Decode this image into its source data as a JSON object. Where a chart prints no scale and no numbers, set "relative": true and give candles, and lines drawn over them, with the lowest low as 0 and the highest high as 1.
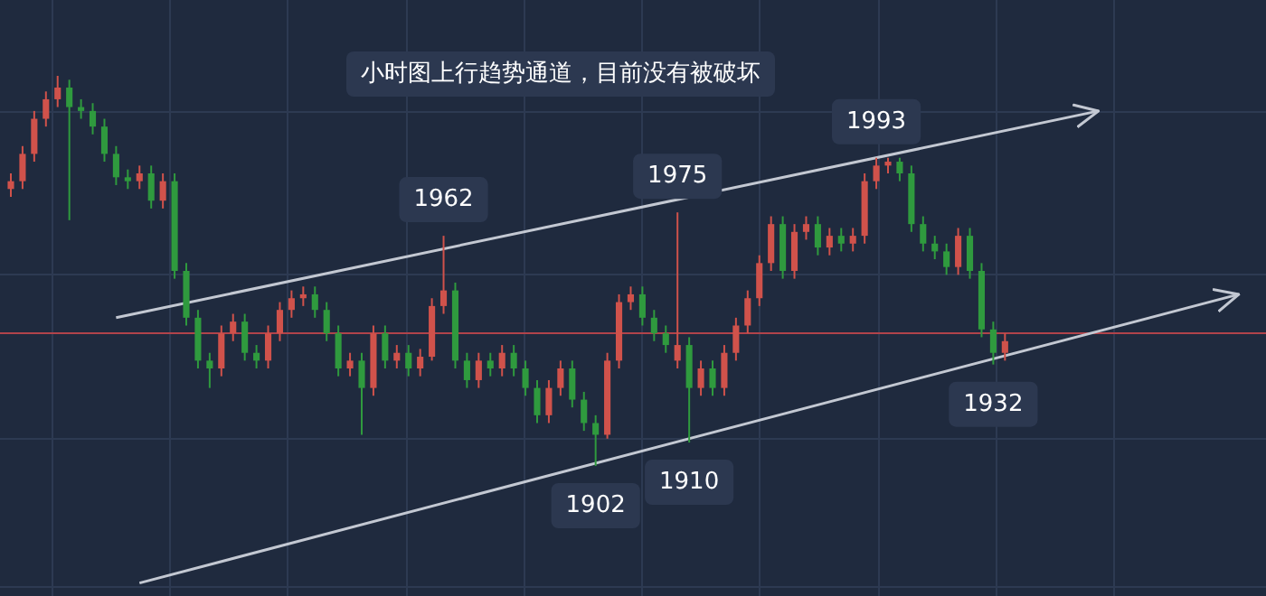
{
  "chart_data": {
    "type": "candlestick",
    "title": "小时图上行趋势通道，目前没有被破坏",
    "relative": true,
    "grid": true,
    "categories": [
      null,
      null,
      null,
      null,
      null,
      null,
      null,
      null,
      null,
      null,
      null,
      null,
      null,
      null,
      null,
      null,
      null,
      null,
      null,
      null,
      null,
      null,
      null,
      null,
      null,
      null,
      null,
      null,
      null,
      null,
      null,
      null,
      null,
      null,
      null,
      null,
      null,
      null,
      null,
      null,
      null,
      null,
      null,
      null,
      null,
      null,
      null,
      null,
      null,
      null,
      null,
      null,
      null,
      null,
      null,
      null,
      null,
      null,
      null,
      null,
      null,
      null,
      null,
      null,
      null,
      null,
      null,
      null,
      null,
      null,
      null,
      null,
      null,
      null,
      null,
      null,
      null,
      null,
      null,
      null,
      null,
      null,
      null,
      null,
      null,
      null,
      null,
      null,
      null,
      null,
      null,
      null,
      null,
      null,
      null,
      null,
      null,
      null,
      null,
      null,
      null,
      null,
      null,
      null,
      null,
      null
    ],
    "colors": [
      "#d0524b",
      "#d0524b",
      "#d0524b",
      "#d0524b",
      "#d0524b",
      "#2f9a3e",
      "#2f9a3e",
      "#2f9a3e",
      "#2f9a3e",
      "#2f9a3e",
      "#2f9a3e",
      "#d0524b",
      "#2f9a3e",
      "#d0524b",
      "#2f9a3e",
      "#2f9a3e",
      "#2f9a3e",
      "#2f9a3e",
      "#d0524b",
      "#d0524b",
      "#2f9a3e",
      "#2f9a3e",
      "#d0524b",
      "#d0524b",
      "#d0524b",
      "#d0524b",
      "#2f9a3e",
      "#2f9a3e",
      "#2f9a3e",
      "#d0524b",
      "#2f9a3e",
      "#d0524b",
      "#2f9a3e",
      "#d0524b",
      "#2f9a3e",
      "#d0524b",
      "#d0524b",
      "#d0524b",
      "#2f9a3e",
      "#2f9a3e",
      "#d0524b",
      "#2f9a3e",
      "#d0524b",
      "#2f9a3e",
      "#2f9a3e",
      "#2f9a3e",
      "#d0524b",
      "#d0524b",
      "#2f9a3e",
      "#2f9a3e",
      "#2f9a3e",
      "#d0524b",
      "#d0524b",
      "#d0524b",
      "#2f9a3e",
      "#2f9a3e",
      "#2f9a3e",
      "#d0524b",
      "#2f9a3e",
      "#d0524b",
      "#2f9a3e",
      "#d0524b",
      "#d0524b",
      "#d0524b",
      "#d0524b",
      "#d0524b",
      "#2f9a3e",
      "#d0524b",
      "#d0524b",
      "#2f9a3e",
      "#d0524b",
      "#2f9a3e",
      "#d0524b",
      "#d0524b",
      "#d0524b",
      "#d0524b",
      "#2f9a3e",
      "#2f9a3e",
      "#2f9a3e",
      "#2f9a3e",
      "#2f9a3e",
      "#d0524b",
      "#2f9a3e",
      "#2f9a3e",
      "#2f9a3e",
      "#d0524b",
      null,
      null,
      null,
      null,
      null,
      null,
      null,
      null,
      null,
      null,
      null,
      null,
      null,
      null,
      null,
      null,
      null,
      null,
      null,
      null
    ],
    "ohlc": [
      [
        0.71,
        0.75,
        0.69,
        0.73
      ],
      [
        0.73,
        0.82,
        0.71,
        0.8
      ],
      [
        0.8,
        0.91,
        0.78,
        0.89
      ],
      [
        0.89,
        0.96,
        0.87,
        0.94
      ],
      [
        0.94,
        1.0,
        0.92,
        0.97
      ],
      [
        0.97,
        0.99,
        0.63,
        0.92
      ],
      [
        0.92,
        0.94,
        0.89,
        0.91
      ],
      [
        0.91,
        0.93,
        0.85,
        0.87
      ],
      [
        0.87,
        0.89,
        0.78,
        0.8
      ],
      [
        0.8,
        0.82,
        0.72,
        0.74
      ],
      [
        0.74,
        0.76,
        0.71,
        0.73
      ],
      [
        0.73,
        0.77,
        0.71,
        0.75
      ],
      [
        0.75,
        0.77,
        0.66,
        0.68
      ],
      [
        0.68,
        0.75,
        0.66,
        0.73
      ],
      [
        0.73,
        0.75,
        0.48,
        0.5
      ],
      [
        0.5,
        0.52,
        0.36,
        0.38
      ],
      [
        0.38,
        0.4,
        0.25,
        0.27
      ],
      [
        0.27,
        0.29,
        0.2,
        0.25
      ],
      [
        0.25,
        0.36,
        0.23,
        0.34
      ],
      [
        0.34,
        0.39,
        0.32,
        0.37
      ],
      [
        0.37,
        0.39,
        0.27,
        0.29
      ],
      [
        0.29,
        0.31,
        0.25,
        0.27
      ],
      [
        0.27,
        0.36,
        0.25,
        0.34
      ],
      [
        0.34,
        0.42,
        0.32,
        0.4
      ],
      [
        0.4,
        0.45,
        0.38,
        0.43
      ],
      [
        0.43,
        0.46,
        0.41,
        0.44
      ],
      [
        0.44,
        0.46,
        0.38,
        0.4
      ],
      [
        0.4,
        0.42,
        0.32,
        0.34
      ],
      [
        0.34,
        0.36,
        0.23,
        0.25
      ],
      [
        0.25,
        0.29,
        0.23,
        0.27
      ],
      [
        0.27,
        0.29,
        0.08,
        0.2
      ],
      [
        0.2,
        0.36,
        0.18,
        0.34
      ],
      [
        0.34,
        0.36,
        0.25,
        0.27
      ],
      [
        0.27,
        0.31,
        0.25,
        0.29
      ],
      [
        0.29,
        0.31,
        0.23,
        0.25
      ],
      [
        0.25,
        0.3,
        0.23,
        0.28
      ],
      [
        0.28,
        0.43,
        0.27,
        0.41
      ],
      [
        0.41,
        0.59,
        0.39,
        0.45
      ],
      [
        0.45,
        0.47,
        0.25,
        0.27
      ],
      [
        0.27,
        0.29,
        0.2,
        0.22
      ],
      [
        0.22,
        0.29,
        0.2,
        0.27
      ],
      [
        0.27,
        0.29,
        0.23,
        0.25
      ],
      [
        0.25,
        0.31,
        0.23,
        0.29
      ],
      [
        0.29,
        0.31,
        0.23,
        0.25
      ],
      [
        0.25,
        0.27,
        0.18,
        0.2
      ],
      [
        0.2,
        0.22,
        0.11,
        0.13
      ],
      [
        0.13,
        0.22,
        0.11,
        0.2
      ],
      [
        0.2,
        0.27,
        0.18,
        0.25
      ],
      [
        0.25,
        0.27,
        0.15,
        0.17
      ],
      [
        0.17,
        0.19,
        0.09,
        0.11
      ],
      [
        0.11,
        0.13,
        0.0,
        0.08
      ],
      [
        0.08,
        0.29,
        0.07,
        0.27
      ],
      [
        0.27,
        0.44,
        0.25,
        0.42
      ],
      [
        0.42,
        0.46,
        0.4,
        0.44
      ],
      [
        0.44,
        0.46,
        0.36,
        0.38
      ],
      [
        0.38,
        0.4,
        0.32,
        0.34
      ],
      [
        0.34,
        0.36,
        0.29,
        0.31
      ],
      [
        0.27,
        0.65,
        0.25,
        0.31
      ],
      [
        0.31,
        0.33,
        0.06,
        0.2
      ],
      [
        0.2,
        0.27,
        0.18,
        0.25
      ],
      [
        0.25,
        0.27,
        0.18,
        0.2
      ],
      [
        0.2,
        0.31,
        0.18,
        0.29
      ],
      [
        0.29,
        0.38,
        0.27,
        0.36
      ],
      [
        0.36,
        0.45,
        0.34,
        0.43
      ],
      [
        0.43,
        0.54,
        0.41,
        0.52
      ],
      [
        0.52,
        0.64,
        0.5,
        0.62
      ],
      [
        0.62,
        0.64,
        0.48,
        0.5
      ],
      [
        0.5,
        0.62,
        0.48,
        0.6
      ],
      [
        0.6,
        0.64,
        0.58,
        0.62
      ],
      [
        0.62,
        0.64,
        0.54,
        0.56
      ],
      [
        0.56,
        0.61,
        0.54,
        0.59
      ],
      [
        0.59,
        0.61,
        0.55,
        0.57
      ],
      [
        0.57,
        0.61,
        0.55,
        0.59
      ],
      [
        0.59,
        0.75,
        0.57,
        0.73
      ],
      [
        0.73,
        0.79,
        0.71,
        0.77
      ],
      [
        0.77,
        0.79,
        0.75,
        0.78
      ],
      [
        0.78,
        0.79,
        0.73,
        0.75
      ],
      [
        0.75,
        0.77,
        0.6,
        0.62
      ],
      [
        0.62,
        0.64,
        0.55,
        0.57
      ],
      [
        0.57,
        0.59,
        0.53,
        0.55
      ],
      [
        0.55,
        0.57,
        0.49,
        0.51
      ],
      [
        0.51,
        0.61,
        0.49,
        0.59
      ],
      [
        0.59,
        0.61,
        0.48,
        0.5
      ],
      [
        0.5,
        0.52,
        0.33,
        0.35
      ],
      [
        0.35,
        0.37,
        0.26,
        0.29
      ],
      [
        0.29,
        0.34,
        0.27,
        0.32
      ],
      null,
      null,
      null,
      null,
      null,
      null,
      null,
      null,
      null,
      null,
      null,
      null,
      null,
      null,
      null,
      null,
      null,
      null,
      null,
      null
    ],
    "series": [
      {
        "type": "line",
        "color": "#c3c8d2",
        "values": [
          null,
          null,
          null,
          null,
          null,
          null,
          null,
          null,
          null,
          0.38,
          null,
          null,
          null,
          null,
          null,
          null,
          null,
          null,
          null,
          null,
          null,
          null,
          null,
          null,
          null,
          null,
          null,
          null,
          null,
          null,
          null,
          null,
          null,
          null,
          null,
          null,
          null,
          null,
          null,
          null,
          null,
          null,
          null,
          null,
          null,
          null,
          null,
          null,
          null,
          null,
          null,
          null,
          null,
          null,
          null,
          null,
          null,
          null,
          null,
          null,
          null,
          null,
          null,
          null,
          null,
          null,
          null,
          null,
          null,
          null,
          null,
          null,
          null,
          null,
          null,
          null,
          null,
          null,
          null,
          null,
          null,
          null,
          null,
          null,
          null,
          null,
          null,
          null,
          null,
          null,
          null,
          null,
          null,
          0.91,
          null,
          null,
          null,
          null,
          null,
          null,
          null,
          null,
          null,
          null,
          null,
          null
        ]
      },
      {
        "type": "line",
        "color": "#c3c8d2",
        "values": [
          null,
          null,
          null,
          null,
          null,
          null,
          null,
          null,
          null,
          null,
          null,
          -0.3,
          null,
          null,
          null,
          null,
          null,
          null,
          null,
          null,
          null,
          null,
          null,
          null,
          null,
          null,
          null,
          null,
          null,
          null,
          null,
          null,
          null,
          null,
          null,
          null,
          null,
          null,
          null,
          null,
          null,
          null,
          null,
          null,
          null,
          null,
          null,
          null,
          null,
          null,
          null,
          null,
          null,
          null,
          null,
          null,
          null,
          null,
          null,
          null,
          null,
          null,
          null,
          null,
          null,
          null,
          null,
          null,
          null,
          null,
          null,
          null,
          null,
          null,
          null,
          null,
          null,
          null,
          null,
          null,
          null,
          null,
          null,
          null,
          null,
          null,
          null,
          null,
          null,
          null,
          null,
          null,
          null,
          null,
          null,
          null,
          null,
          null,
          null,
          null,
          null,
          null,
          null,
          null,
          null,
          0.44
        ]
      }
    ],
    "ref_lines": [
      {
        "axis": "y",
        "value": 0.34,
        "color": "#b0434a"
      }
    ],
    "annotations": [
      {
        "text": "1962",
        "y": 0.59
      },
      {
        "text": "1975",
        "y": 0.65
      },
      {
        "text": "1993",
        "y": 0.79
      },
      {
        "text": "1902",
        "y": 0.0
      },
      {
        "text": "1910",
        "y": 0.06
      },
      {
        "text": "1932",
        "y": 0.26
      }
    ]
  }
}
